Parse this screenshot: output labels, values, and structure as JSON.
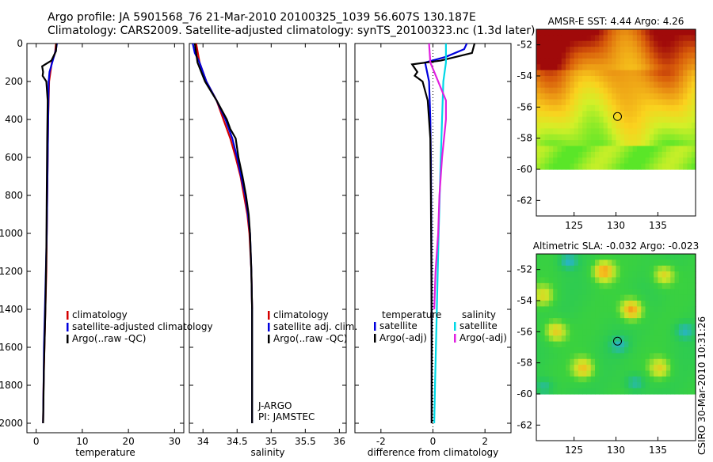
{
  "title_line1": "Argo profile: JA 5901568_76 21-Mar-2010 20100325_1039 56.607S 130.187E",
  "title_line2": "Climatology: CARS2009. Satellite-adjusted climatology: synTS_20100323.nc (1.3d later)",
  "side_stamp": "CSIRO 30-Mar-2010 10:31:26",
  "colors": {
    "climatology": "#d40000",
    "satellite": "#0000dd",
    "argo": "#000000",
    "sat_salinity": "#00d8e6",
    "argo_salinity": "#e020e0",
    "frame": "#000000"
  },
  "chart_data": [
    {
      "id": "temperature",
      "type": "line",
      "xlabel": "temperature",
      "ylabel": "",
      "xlim": [
        -2,
        32
      ],
      "ylim": [
        2050,
        0
      ],
      "xticks": [
        0,
        10,
        20,
        30
      ],
      "yticks": [
        0,
        200,
        400,
        600,
        800,
        1000,
        1200,
        1400,
        1600,
        1800,
        2000
      ],
      "legend": [
        "climatology",
        "satellite-adjusted climatology",
        "Argo(..raw -QC)"
      ],
      "series": [
        {
          "name": "climatology",
          "color": "#d40000",
          "points": [
            [
              4.3,
              0
            ],
            [
              4.1,
              50
            ],
            [
              3.4,
              100
            ],
            [
              2.8,
              200
            ],
            [
              2.6,
              400
            ],
            [
              2.5,
              600
            ],
            [
              2.4,
              800
            ],
            [
              2.3,
              1000
            ],
            [
              2.2,
              1200
            ],
            [
              2.0,
              1400
            ],
            [
              1.8,
              1600
            ],
            [
              1.6,
              1800
            ],
            [
              1.5,
              2000
            ]
          ]
        },
        {
          "name": "satellite-adjusted climatology",
          "color": "#0000dd",
          "points": [
            [
              4.5,
              0
            ],
            [
              4.3,
              30
            ],
            [
              3.6,
              90
            ],
            [
              2.9,
              150
            ],
            [
              2.7,
              200
            ],
            [
              2.6,
              400
            ],
            [
              2.5,
              600
            ],
            [
              2.4,
              800
            ],
            [
              2.3,
              1000
            ],
            [
              2.1,
              1200
            ],
            [
              1.9,
              1400
            ],
            [
              1.7,
              1600
            ],
            [
              1.6,
              1800
            ],
            [
              1.5,
              2000
            ]
          ]
        },
        {
          "name": "Argo(..raw -QC)",
          "color": "#000000",
          "points": [
            [
              4.4,
              0
            ],
            [
              4.3,
              40
            ],
            [
              3.3,
              90
            ],
            [
              1.3,
              120
            ],
            [
              1.5,
              150
            ],
            [
              1.4,
              170
            ],
            [
              2.2,
              200
            ],
            [
              2.5,
              300
            ],
            [
              2.4,
              500
            ],
            [
              2.3,
              800
            ],
            [
              2.2,
              1100
            ],
            [
              2.0,
              1400
            ],
            [
              1.7,
              1700
            ],
            [
              1.5,
              2000
            ]
          ]
        }
      ]
    },
    {
      "id": "salinity",
      "type": "line",
      "xlabel": "salinity",
      "xlim": [
        33.8,
        36.1
      ],
      "ylim": [
        2050,
        0
      ],
      "xticks": [
        34,
        34.5,
        35,
        35.5,
        36
      ],
      "xtick_labels": [
        "34",
        "34.5",
        "35",
        "35.5",
        "36"
      ],
      "legend": [
        "climatology",
        "satellite adj. clim.",
        "Argo(..raw -QC)"
      ],
      "annotation": [
        "J-ARGO",
        "PI: JAMSTEC"
      ],
      "series": [
        {
          "name": "climatology",
          "color": "#d40000",
          "points": [
            [
              33.9,
              0
            ],
            [
              33.95,
              100
            ],
            [
              34.05,
              200
            ],
            [
              34.2,
              300
            ],
            [
              34.3,
              400
            ],
            [
              34.4,
              500
            ],
            [
              34.48,
              600
            ],
            [
              34.55,
              700
            ],
            [
              34.6,
              800
            ],
            [
              34.65,
              900
            ],
            [
              34.68,
              1000
            ],
            [
              34.71,
              1200
            ],
            [
              34.72,
              1400
            ]
          ]
        },
        {
          "name": "satellite adj. clim.",
          "color": "#0000dd",
          "points": [
            [
              33.85,
              0
            ],
            [
              33.88,
              50
            ],
            [
              33.95,
              100
            ],
            [
              34.05,
              200
            ],
            [
              34.2,
              300
            ],
            [
              34.33,
              400
            ],
            [
              34.43,
              500
            ],
            [
              34.5,
              600
            ],
            [
              34.56,
              700
            ],
            [
              34.62,
              800
            ],
            [
              34.66,
              900
            ],
            [
              34.69,
              1000
            ],
            [
              34.71,
              1200
            ],
            [
              34.72,
              1400
            ],
            [
              34.72,
              1600
            ],
            [
              34.72,
              1800
            ],
            [
              34.72,
              2000
            ]
          ]
        },
        {
          "name": "Argo(..raw -QC)",
          "color": "#000000",
          "points": [
            [
              33.88,
              0
            ],
            [
              33.92,
              100
            ],
            [
              34.03,
              200
            ],
            [
              34.2,
              300
            ],
            [
              34.35,
              400
            ],
            [
              34.4,
              450
            ],
            [
              34.48,
              500
            ],
            [
              34.52,
              600
            ],
            [
              34.58,
              700
            ],
            [
              34.63,
              800
            ],
            [
              34.67,
              900
            ],
            [
              34.69,
              1000
            ],
            [
              34.71,
              1200
            ],
            [
              34.72,
              1400
            ],
            [
              34.72,
              1600
            ],
            [
              34.72,
              1800
            ],
            [
              34.72,
              2000
            ]
          ]
        }
      ]
    },
    {
      "id": "difference",
      "type": "line",
      "xlabel": "difference from climatology",
      "xlim": [
        -3,
        3
      ],
      "ylim": [
        2050,
        0
      ],
      "xticks": [
        -2,
        0,
        2
      ],
      "legend_temperature_header": "temperature",
      "legend_salinity_header": "salinity",
      "legend_temperature": [
        "satellite",
        "Argo(-adj)"
      ],
      "legend_salinity": [
        "satellite",
        "Argo(-adj)"
      ],
      "series": [
        {
          "name": "temperature satellite",
          "color": "#0000dd",
          "points": [
            [
              1.3,
              0
            ],
            [
              1.2,
              30
            ],
            [
              0.5,
              70
            ],
            [
              -0.3,
              100
            ],
            [
              -0.15,
              200
            ],
            [
              -0.1,
              400
            ],
            [
              -0.08,
              600
            ],
            [
              -0.06,
              1000
            ],
            [
              -0.05,
              1500
            ],
            [
              -0.05,
              2000
            ]
          ]
        },
        {
          "name": "temperature Argo(-adj)",
          "color": "#000000",
          "points": [
            [
              1.6,
              0
            ],
            [
              1.5,
              50
            ],
            [
              0.3,
              90
            ],
            [
              -0.8,
              110
            ],
            [
              -0.6,
              150
            ],
            [
              -0.7,
              170
            ],
            [
              -0.4,
              200
            ],
            [
              -0.2,
              300
            ],
            [
              -0.1,
              500
            ],
            [
              -0.08,
              800
            ],
            [
              -0.06,
              1200
            ],
            [
              -0.05,
              1600
            ],
            [
              -0.05,
              2000
            ]
          ]
        },
        {
          "name": "salinity satellite",
          "color": "#00d8e6",
          "points": [
            [
              0.5,
              0
            ],
            [
              0.5,
              100
            ],
            [
              0.4,
              200
            ],
            [
              0.35,
              400
            ],
            [
              0.3,
              600
            ],
            [
              0.22,
              1000
            ],
            [
              0.15,
              1400
            ],
            [
              0.08,
              1800
            ],
            [
              0.05,
              2000
            ]
          ]
        },
        {
          "name": "salinity Argo(-adj)",
          "color": "#e020e0",
          "points": [
            [
              -0.15,
              0
            ],
            [
              -0.1,
              100
            ],
            [
              0.2,
              200
            ],
            [
              0.5,
              300
            ],
            [
              0.5,
              400
            ],
            [
              0.35,
              600
            ],
            [
              0.25,
              800
            ],
            [
              0.2,
              1000
            ],
            [
              0.1,
              1200
            ],
            [
              0.05,
              1400
            ]
          ]
        }
      ]
    },
    {
      "id": "sst_map",
      "type": "heatmap",
      "title": "AMSR-E SST: 4.44 Argo: 4.26",
      "xlim": [
        120.5,
        139.5
      ],
      "ylim": [
        -63,
        -51
      ],
      "xticks": [
        125,
        130,
        135
      ],
      "yticks": [
        -52,
        -54,
        -56,
        -58,
        -60,
        -62
      ],
      "marker": [
        130.187,
        -56.607
      ],
      "data_lat_range": [
        -60,
        -51
      ]
    },
    {
      "id": "sla_map",
      "type": "heatmap",
      "title": "Altimetric SLA: -0.032 Argo: -0.023",
      "xlim": [
        120.5,
        139.5
      ],
      "ylim": [
        -63,
        -51
      ],
      "xticks": [
        125,
        130,
        135
      ],
      "yticks": [
        -52,
        -54,
        -56,
        -58,
        -60,
        -62
      ],
      "marker": [
        130.187,
        -56.607
      ],
      "data_lat_range": [
        -60,
        -51
      ]
    }
  ]
}
